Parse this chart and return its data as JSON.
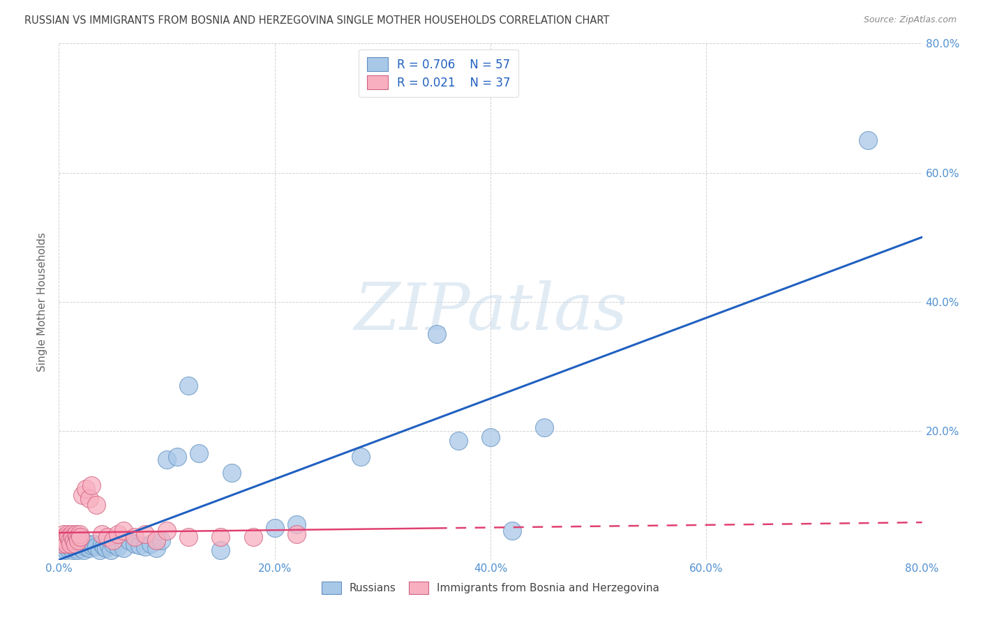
{
  "title": "RUSSIAN VS IMMIGRANTS FROM BOSNIA AND HERZEGOVINA SINGLE MOTHER HOUSEHOLDS CORRELATION CHART",
  "source": "Source: ZipAtlas.com",
  "ylabel": "Single Mother Households",
  "xlim": [
    0.0,
    0.8
  ],
  "ylim": [
    0.0,
    0.8
  ],
  "xticks": [
    0.0,
    0.2,
    0.4,
    0.6,
    0.8
  ],
  "yticks": [
    0.0,
    0.2,
    0.4,
    0.6,
    0.8
  ],
  "xticklabels": [
    "0.0%",
    "20.0%",
    "40.0%",
    "60.0%",
    "80.0%"
  ],
  "right_yticklabels": [
    "20.0%",
    "40.0%",
    "60.0%",
    "80.0%"
  ],
  "right_yticks": [
    0.2,
    0.4,
    0.6,
    0.8
  ],
  "grid_color": "#cccccc",
  "background_color": "#ffffff",
  "watermark_text": "ZIPatlas",
  "legend_R1": "0.706",
  "legend_N1": "57",
  "legend_R2": "0.021",
  "legend_N2": "37",
  "blue_scatter_color": "#a8c8e8",
  "pink_scatter_color": "#f8b0c0",
  "blue_line_color": "#2060c0",
  "pink_line_color": "#e04070",
  "title_color": "#404040",
  "axis_color": "#5090d0",
  "label_color": "#666666",
  "blue_line_x": [
    0.0,
    0.8
  ],
  "blue_line_y": [
    0.0,
    0.5
  ],
  "pink_line_x": [
    0.0,
    0.8
  ],
  "pink_line_y": [
    0.042,
    0.058
  ],
  "rus_x": [
    0.003,
    0.005,
    0.006,
    0.007,
    0.008,
    0.009,
    0.01,
    0.011,
    0.012,
    0.013,
    0.014,
    0.015,
    0.016,
    0.017,
    0.018,
    0.019,
    0.02,
    0.021,
    0.022,
    0.023,
    0.025,
    0.026,
    0.028,
    0.03,
    0.032,
    0.035,
    0.038,
    0.04,
    0.042,
    0.044,
    0.046,
    0.048,
    0.05,
    0.055,
    0.06,
    0.065,
    0.07,
    0.075,
    0.08,
    0.085,
    0.09,
    0.095,
    0.1,
    0.11,
    0.12,
    0.13,
    0.15,
    0.16,
    0.2,
    0.22,
    0.28,
    0.35,
    0.37,
    0.4,
    0.42,
    0.45,
    0.75
  ],
  "rus_y": [
    0.02,
    0.025,
    0.015,
    0.03,
    0.018,
    0.022,
    0.035,
    0.02,
    0.025,
    0.015,
    0.03,
    0.018,
    0.022,
    0.015,
    0.028,
    0.02,
    0.025,
    0.018,
    0.03,
    0.015,
    0.02,
    0.025,
    0.018,
    0.022,
    0.025,
    0.02,
    0.015,
    0.025,
    0.02,
    0.018,
    0.022,
    0.015,
    0.025,
    0.02,
    0.018,
    0.03,
    0.025,
    0.022,
    0.02,
    0.025,
    0.018,
    0.03,
    0.155,
    0.16,
    0.27,
    0.165,
    0.015,
    0.135,
    0.05,
    0.055,
    0.16,
    0.35,
    0.185,
    0.19,
    0.045,
    0.205,
    0.65
  ],
  "bos_x": [
    0.002,
    0.003,
    0.004,
    0.005,
    0.006,
    0.007,
    0.008,
    0.009,
    0.01,
    0.011,
    0.012,
    0.013,
    0.014,
    0.015,
    0.016,
    0.017,
    0.018,
    0.019,
    0.02,
    0.022,
    0.025,
    0.028,
    0.03,
    0.035,
    0.04,
    0.045,
    0.05,
    0.055,
    0.06,
    0.07,
    0.08,
    0.09,
    0.1,
    0.12,
    0.15,
    0.18,
    0.22
  ],
  "bos_y": [
    0.03,
    0.025,
    0.04,
    0.035,
    0.03,
    0.025,
    0.04,
    0.035,
    0.03,
    0.025,
    0.04,
    0.035,
    0.03,
    0.025,
    0.04,
    0.035,
    0.03,
    0.04,
    0.035,
    0.1,
    0.11,
    0.095,
    0.115,
    0.085,
    0.04,
    0.035,
    0.03,
    0.04,
    0.045,
    0.035,
    0.04,
    0.03,
    0.045,
    0.035,
    0.035,
    0.035,
    0.04
  ]
}
